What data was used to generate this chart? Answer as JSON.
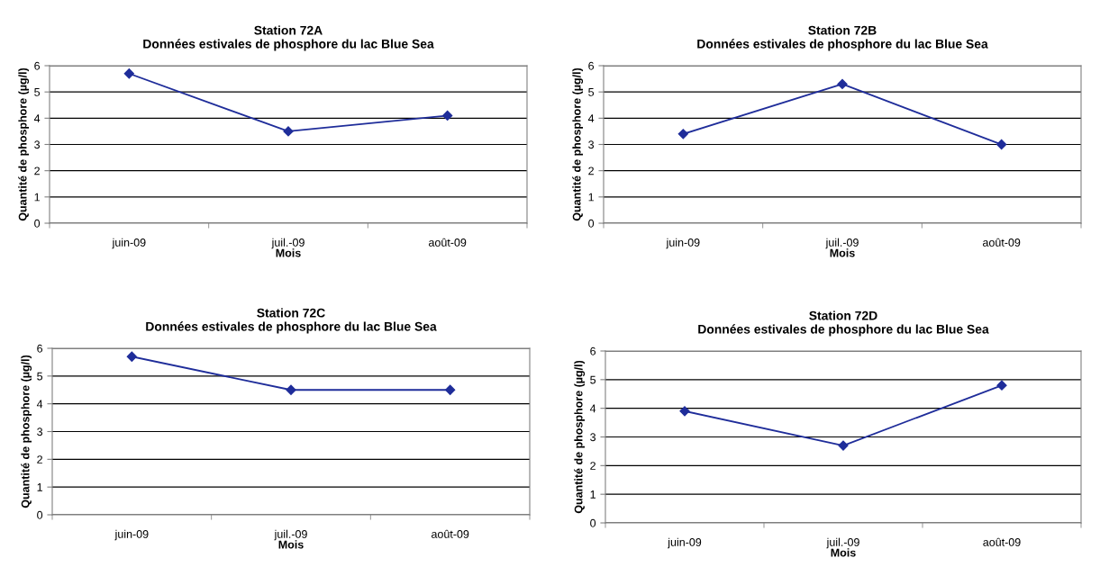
{
  "chart_data": [
    {
      "type": "line",
      "title": "Station 72A\nDonnées estivales de phosphore du lac Blue Sea",
      "xlabel": "Mois",
      "ylabel": "Quantité de phosphore (µg/l)",
      "categories": [
        "juin-09",
        "juil.-09",
        "août-09"
      ],
      "series": [
        {
          "color": "#1f2d9a",
          "values": [
            5.7,
            3.5,
            4.1
          ]
        }
      ],
      "ylim": [
        0,
        6
      ],
      "yticks": [
        0,
        1,
        2,
        3,
        4,
        5,
        6
      ],
      "grid": "y",
      "marker": "diamond",
      "line_style": "solid"
    },
    {
      "type": "line",
      "title": "Station 72B\nDonnées estivales de phosphore du lac Blue Sea",
      "xlabel": "Mois",
      "ylabel": "Quantité de phosphore (µg/l)",
      "categories": [
        "juin-09",
        "juil.-09",
        "août-09"
      ],
      "series": [
        {
          "color": "#1f2d9a",
          "values": [
            3.4,
            5.3,
            3.0
          ]
        }
      ],
      "ylim": [
        0,
        6
      ],
      "yticks": [
        0,
        1,
        2,
        3,
        4,
        5,
        6
      ],
      "grid": "y",
      "marker": "diamond",
      "line_style": "solid"
    },
    {
      "type": "line",
      "title": "Station 72C\nDonnées estivales de phosphore du lac Blue Sea",
      "xlabel": "Mois",
      "ylabel": "Quantité de phosphore (µg/l)",
      "categories": [
        "juin-09",
        "juil.-09",
        "août-09"
      ],
      "series": [
        {
          "color": "#1f2d9a",
          "values": [
            5.7,
            4.5,
            4.5
          ]
        }
      ],
      "ylim": [
        0,
        6
      ],
      "yticks": [
        0,
        1,
        2,
        3,
        4,
        5,
        6
      ],
      "grid": "y",
      "marker": "diamond",
      "line_style": "solid"
    },
    {
      "type": "line",
      "title": "Station 72D\nDonnées estivales de phosphore du lac Blue Sea",
      "xlabel": "Mois",
      "ylabel": "Quantité de phosphore (µg/l)",
      "categories": [
        "juin-09",
        "juil.-09",
        "août-09"
      ],
      "series": [
        {
          "color": "#1f2d9a",
          "values": [
            3.9,
            2.7,
            4.8
          ]
        }
      ],
      "ylim": [
        0,
        6
      ],
      "yticks": [
        0,
        1,
        2,
        3,
        4,
        5,
        6
      ],
      "grid": "y",
      "marker": "diamond",
      "line_style": "solid"
    }
  ]
}
